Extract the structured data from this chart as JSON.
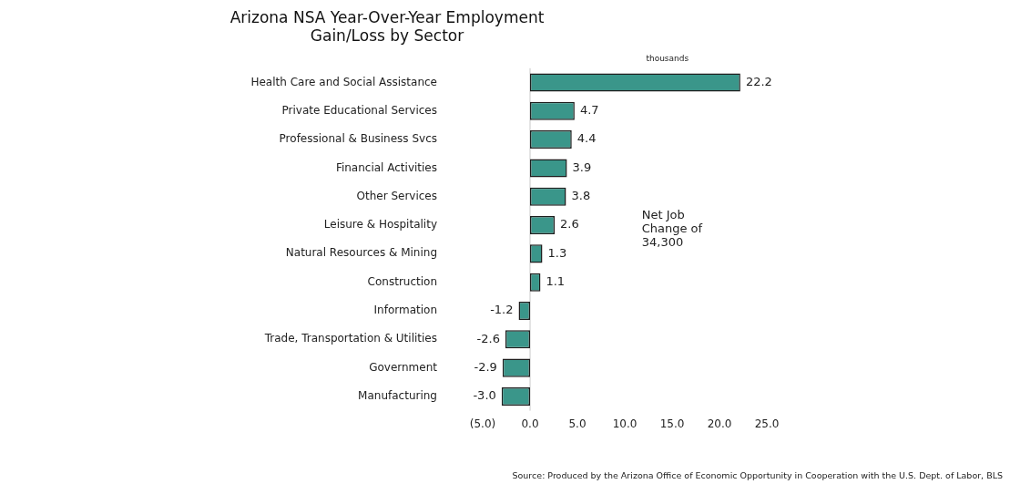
{
  "chart_data": {
    "type": "bar",
    "orientation": "horizontal",
    "title": "Arizona NSA Year-Over-Year Employment Gain/Loss by Sector",
    "categories": [
      "Health Care and Social Assistance",
      "Private Educational Services",
      "Professional & Business Svcs",
      "Financial Activities",
      "Other Services",
      "Leisure & Hospitality",
      "Natural Resources & Mining",
      "Construction",
      "Information",
      "Trade, Transportation & Utilities",
      "Government",
      "Manufacturing"
    ],
    "values": [
      22.2,
      4.7,
      4.4,
      3.9,
      3.8,
      2.6,
      1.3,
      1.1,
      -1.2,
      -2.6,
      -2.9,
      -3.0
    ],
    "value_labels": [
      "22.2",
      "4.7",
      "4.4",
      "3.9",
      "3.8",
      "2.6",
      "1.3",
      "1.1",
      "-1.2",
      "-2.6",
      "-2.9",
      "-3.0"
    ],
    "color": "#3a968a",
    "xlim": [
      -5,
      25
    ],
    "xticks": [
      {
        "value": -5,
        "label": "(5.0)"
      },
      {
        "value": 0,
        "label": "0.0"
      },
      {
        "value": 5,
        "label": "5.0"
      },
      {
        "value": 10,
        "label": "10.0"
      },
      {
        "value": 15,
        "label": "15.0"
      },
      {
        "value": 20,
        "label": "20.0"
      },
      {
        "value": 25,
        "label": "25.0"
      }
    ],
    "grid": false,
    "legend": false,
    "ref_lines": [
      {
        "axis": "x",
        "value": 0,
        "color": "#c8c8c8"
      }
    ],
    "annotations": [
      "thousands",
      "Net Job Change of 34,300",
      "Source: Produced by the Arizona Office of Economic Opportunity in Cooperation with the U.S. Dept. of Labor, BLS"
    ]
  }
}
